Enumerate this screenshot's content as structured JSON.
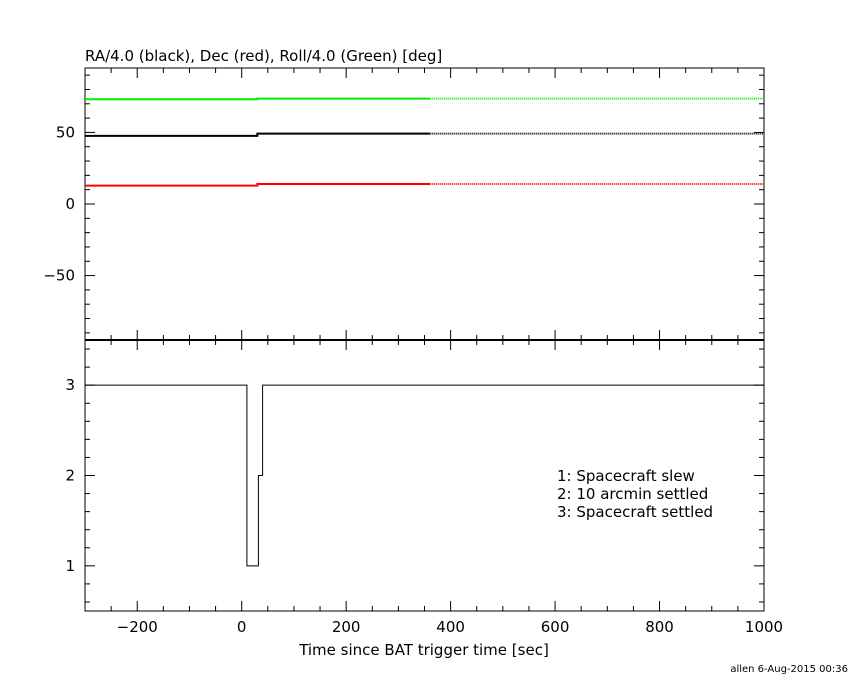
{
  "credit": "allen  6-Aug-2015 00:36",
  "chart_data": [
    {
      "type": "line",
      "title": "RA/4.0 (black), Dec (red), Roll/4.0 (Green) [deg]",
      "xlabel": "",
      "ylabel": "",
      "xlim": [
        -300,
        1000
      ],
      "ylim": [
        -95,
        95
      ],
      "yticks": [
        -50,
        0,
        50
      ],
      "grid": false,
      "series": [
        {
          "color": "#00ee00",
          "solid": [
            [
              -300,
              73.2
            ],
            [
              30,
              73.2
            ],
            [
              30,
              73.6
            ],
            [
              360,
              73.6
            ]
          ],
          "dotted": [
            [
              360,
              73.6
            ],
            [
              1000,
              73.6
            ]
          ]
        },
        {
          "color": "#000000",
          "solid": [
            [
              -300,
              47.6
            ],
            [
              30,
              47.6
            ],
            [
              30,
              49.2
            ],
            [
              360,
              49.2
            ]
          ],
          "dotted": [
            [
              360,
              49.2
            ],
            [
              1000,
              49.2
            ]
          ]
        },
        {
          "color": "#ff0000",
          "solid": [
            [
              -300,
              12.8
            ],
            [
              30,
              12.8
            ],
            [
              30,
              14.0
            ],
            [
              360,
              14.0
            ]
          ],
          "dotted": [
            [
              360,
              14.0
            ],
            [
              1000,
              14.0
            ]
          ]
        }
      ]
    },
    {
      "type": "line",
      "title": "",
      "xlabel": "Time since BAT trigger time [sec]",
      "ylabel": "",
      "xlim": [
        -300,
        1000
      ],
      "ylim": [
        0.5,
        3.5
      ],
      "xticks": [
        -200,
        0,
        200,
        400,
        600,
        800,
        1000
      ],
      "yticks": [
        1,
        2,
        3
      ],
      "grid": false,
      "legend_lines": [
        "1: Spacecraft slew",
        "2: 10 arcmin settled",
        "3: Spacecraft settled"
      ],
      "legend_position": "lower-right",
      "series": [
        {
          "color": "#000000",
          "step": [
            [
              -300,
              3
            ],
            [
              10,
              3
            ],
            [
              10,
              1
            ],
            [
              32,
              1
            ],
            [
              32,
              2
            ],
            [
              40,
              2
            ],
            [
              40,
              3
            ],
            [
              1000,
              3
            ]
          ]
        }
      ]
    }
  ]
}
